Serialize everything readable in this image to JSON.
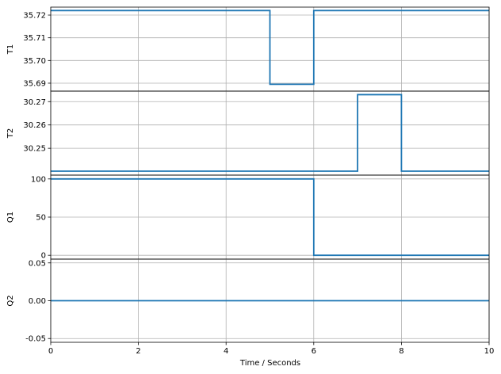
{
  "chart_data": {
    "type": "line",
    "step": true,
    "xlabel": "Time / Seconds",
    "xlim": [
      0,
      10
    ],
    "x_ticks": [
      0,
      2,
      4,
      6,
      8,
      10
    ],
    "x_tick_labels": [
      "0",
      "2",
      "4",
      "6",
      "8",
      "10"
    ],
    "grid": true,
    "line_color": "#1f77b4",
    "subplots": [
      {
        "ylabel": "T1",
        "ylim": [
          35.6865,
          35.7235
        ],
        "y_ticks": [
          35.69,
          35.7,
          35.71,
          35.72
        ],
        "y_tick_labels": [
          "35.69",
          "35.70",
          "35.71",
          "35.72"
        ],
        "series": [
          {
            "x": [
              0,
              5,
              5,
              6,
              6,
              10
            ],
            "y": [
              35.722,
              35.722,
              35.6895,
              35.6895,
              35.722,
              35.722
            ]
          }
        ]
      },
      {
        "ylabel": "T2",
        "ylim": [
          30.2385,
          30.2745
        ],
        "y_ticks": [
          30.25,
          30.26,
          30.27
        ],
        "y_tick_labels": [
          "30.25",
          "30.26",
          "30.27"
        ],
        "series": [
          {
            "x": [
              0,
              7,
              7,
              8,
              8,
              10
            ],
            "y": [
              30.2402,
              30.2402,
              30.273,
              30.273,
              30.2402,
              30.2402
            ]
          }
        ]
      },
      {
        "ylabel": "Q1",
        "ylim": [
          -5,
          105
        ],
        "y_ticks": [
          0,
          50,
          100
        ],
        "y_tick_labels": [
          "0",
          "50",
          "100"
        ],
        "series": [
          {
            "x": [
              0,
              6,
              6,
              10
            ],
            "y": [
              100,
              100,
              0,
              0
            ]
          }
        ]
      },
      {
        "ylabel": "Q2",
        "ylim": [
          -0.055,
          0.055
        ],
        "y_ticks": [
          -0.05,
          0.0,
          0.05
        ],
        "y_tick_labels": [
          "-0.05",
          "0.00",
          "0.05"
        ],
        "series": [
          {
            "x": [
              0,
              10
            ],
            "y": [
              0,
              0
            ]
          }
        ]
      }
    ]
  }
}
